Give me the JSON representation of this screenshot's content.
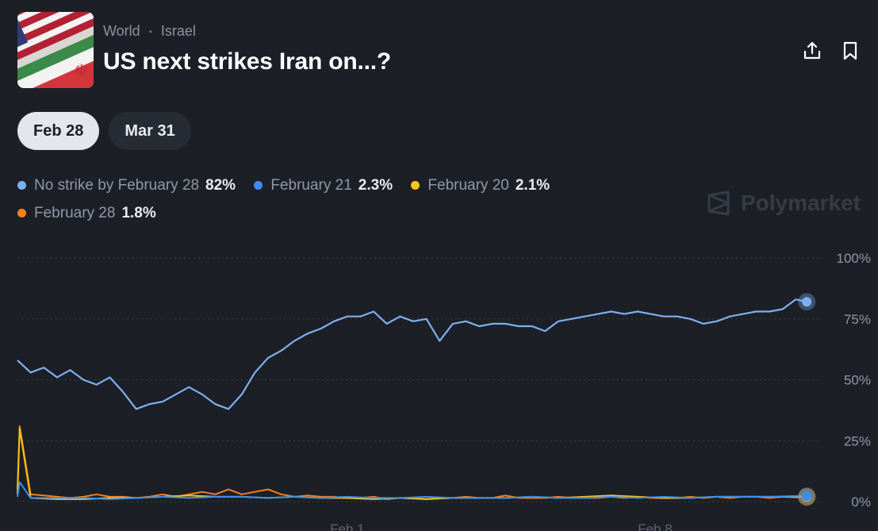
{
  "header": {
    "breadcrumb": [
      "World",
      "Israel"
    ],
    "title": "US next strikes Iran on...?",
    "thumb_icon": "us-iran-flags-image",
    "share_icon": "share-icon",
    "bookmark_icon": "bookmark-icon"
  },
  "tabs": [
    {
      "label": "Feb 28",
      "active": true
    },
    {
      "label": "Mar 31",
      "active": false
    }
  ],
  "watermark": "Polymarket",
  "colors": {
    "background": "#1c1f26",
    "series_no_strike": "#7eaff0",
    "series_feb21": "#3a8ef0",
    "series_feb20": "#f5c518",
    "series_feb28": "#f5801e"
  },
  "chart_data": {
    "type": "line",
    "y_ticks": [
      "100%",
      "75%",
      "50%",
      "25%",
      "0%"
    ],
    "ylim": [
      0,
      100
    ],
    "x_ticks": [
      {
        "label": "Feb 1",
        "day": 7.5
      },
      {
        "label": "Feb 8",
        "day": 14.5
      }
    ],
    "xlim": [
      0,
      18
    ],
    "grid": "horizontal-dotted",
    "legend_placement": "top-left",
    "series": [
      {
        "name": "No strike by February 28",
        "label_value": "82%",
        "color": "#7eaff0",
        "x": [
          0,
          0.3,
          0.6,
          0.9,
          1.2,
          1.5,
          1.8,
          2.1,
          2.4,
          2.7,
          3.0,
          3.3,
          3.6,
          3.9,
          4.2,
          4.5,
          4.8,
          5.1,
          5.4,
          5.7,
          6.0,
          6.3,
          6.6,
          6.9,
          7.2,
          7.5,
          7.8,
          8.1,
          8.4,
          8.7,
          9.0,
          9.3,
          9.6,
          9.9,
          10.2,
          10.5,
          10.8,
          11.1,
          11.4,
          11.7,
          12.0,
          12.3,
          12.6,
          12.9,
          13.2,
          13.5,
          13.8,
          14.1,
          14.4,
          14.7,
          15.0,
          15.3,
          15.6,
          15.9,
          16.2,
          16.5,
          16.8,
          17.1,
          17.4,
          17.7,
          17.95
        ],
        "values": [
          58,
          53,
          55,
          51,
          54,
          50,
          48,
          51,
          45,
          38,
          40,
          41,
          44,
          47,
          44,
          40,
          38,
          44,
          53,
          59,
          62,
          66,
          69,
          71,
          74,
          76,
          76,
          78,
          73,
          76,
          74,
          75,
          66,
          73,
          74,
          72,
          73,
          73,
          72,
          72,
          70,
          74,
          75,
          76,
          77,
          78,
          77,
          78,
          77,
          76,
          76,
          75,
          73,
          74,
          76,
          77,
          78,
          78,
          79,
          83,
          82
        ]
      },
      {
        "name": "February 21",
        "label_value": "2.3%",
        "color": "#3a8ef0",
        "x": [
          0,
          0.05,
          0.3,
          0.9,
          1.5,
          2.1,
          2.7,
          3.3,
          3.9,
          4.5,
          5.1,
          5.7,
          6.3,
          6.9,
          7.5,
          8.1,
          8.7,
          9.3,
          9.9,
          10.5,
          11.1,
          11.7,
          12.3,
          12.9,
          13.5,
          14.1,
          14.7,
          15.3,
          15.9,
          16.5,
          17.1,
          17.7,
          17.95
        ],
        "values": [
          2,
          8,
          1.5,
          1.5,
          1.5,
          1.0,
          1.5,
          2.0,
          1.5,
          2.0,
          2.0,
          1.5,
          2.0,
          1.5,
          2.0,
          1.5,
          1.5,
          2.0,
          1.5,
          1.5,
          1.5,
          2.0,
          1.5,
          1.5,
          2.0,
          1.5,
          2.0,
          1.5,
          2.0,
          2.0,
          2.0,
          2.3,
          2.3
        ]
      },
      {
        "name": "February 20",
        "label_value": "2.1%",
        "color": "#f5c518",
        "x": [
          0,
          0.05,
          0.3,
          0.9,
          1.5,
          2.1,
          2.7,
          3.3,
          3.9,
          4.5,
          5.1,
          5.7,
          6.3,
          6.9,
          7.5,
          8.1,
          8.7,
          9.3,
          9.9,
          10.5,
          11.1,
          11.7,
          12.3,
          12.9,
          13.5,
          14.1,
          14.7,
          15.3,
          15.9,
          16.5,
          17.1,
          17.7,
          17.95
        ],
        "values": [
          3,
          30,
          1.5,
          1.0,
          1.0,
          1.5,
          1.5,
          2.0,
          2.5,
          2.0,
          2.0,
          1.5,
          2.0,
          1.5,
          1.5,
          1.0,
          1.5,
          1.0,
          1.5,
          1.5,
          1.5,
          2.0,
          1.5,
          2.0,
          2.5,
          2.0,
          1.5,
          1.5,
          2.0,
          2.0,
          2.0,
          2.1,
          2.1
        ]
      },
      {
        "name": "February 28",
        "label_value": "1.8%",
        "color": "#f5801e",
        "x": [
          0,
          0.05,
          0.3,
          0.6,
          0.9,
          1.2,
          1.5,
          1.8,
          2.1,
          2.4,
          2.7,
          3.0,
          3.3,
          3.6,
          3.9,
          4.2,
          4.5,
          4.8,
          5.1,
          5.4,
          5.7,
          6.0,
          6.3,
          6.6,
          6.9,
          7.2,
          7.5,
          7.8,
          8.1,
          8.4,
          8.7,
          9.0,
          9.3,
          9.6,
          9.9,
          10.2,
          10.5,
          10.8,
          11.1,
          11.4,
          11.7,
          12.0,
          12.3,
          12.6,
          12.9,
          13.2,
          13.5,
          13.8,
          14.1,
          14.4,
          14.7,
          15.0,
          15.3,
          15.6,
          15.9,
          16.2,
          16.5,
          16.8,
          17.1,
          17.4,
          17.7,
          17.95
        ],
        "values": [
          5,
          31,
          3,
          2.5,
          2,
          1.5,
          2,
          3,
          2,
          2,
          1.5,
          2,
          3,
          2,
          3,
          4,
          3,
          5,
          3,
          4,
          5,
          3,
          2,
          2.5,
          2,
          2,
          1.5,
          1.5,
          2,
          1,
          1.5,
          1.5,
          1,
          1.5,
          1.5,
          2,
          1.5,
          1.5,
          2.5,
          1.5,
          1.5,
          1.5,
          2,
          1.5,
          1.5,
          1.5,
          2,
          1.5,
          2,
          1.5,
          1.5,
          1.5,
          2,
          1.5,
          2,
          1.5,
          2,
          2,
          1.5,
          2,
          1.8,
          1.8
        ]
      }
    ]
  }
}
